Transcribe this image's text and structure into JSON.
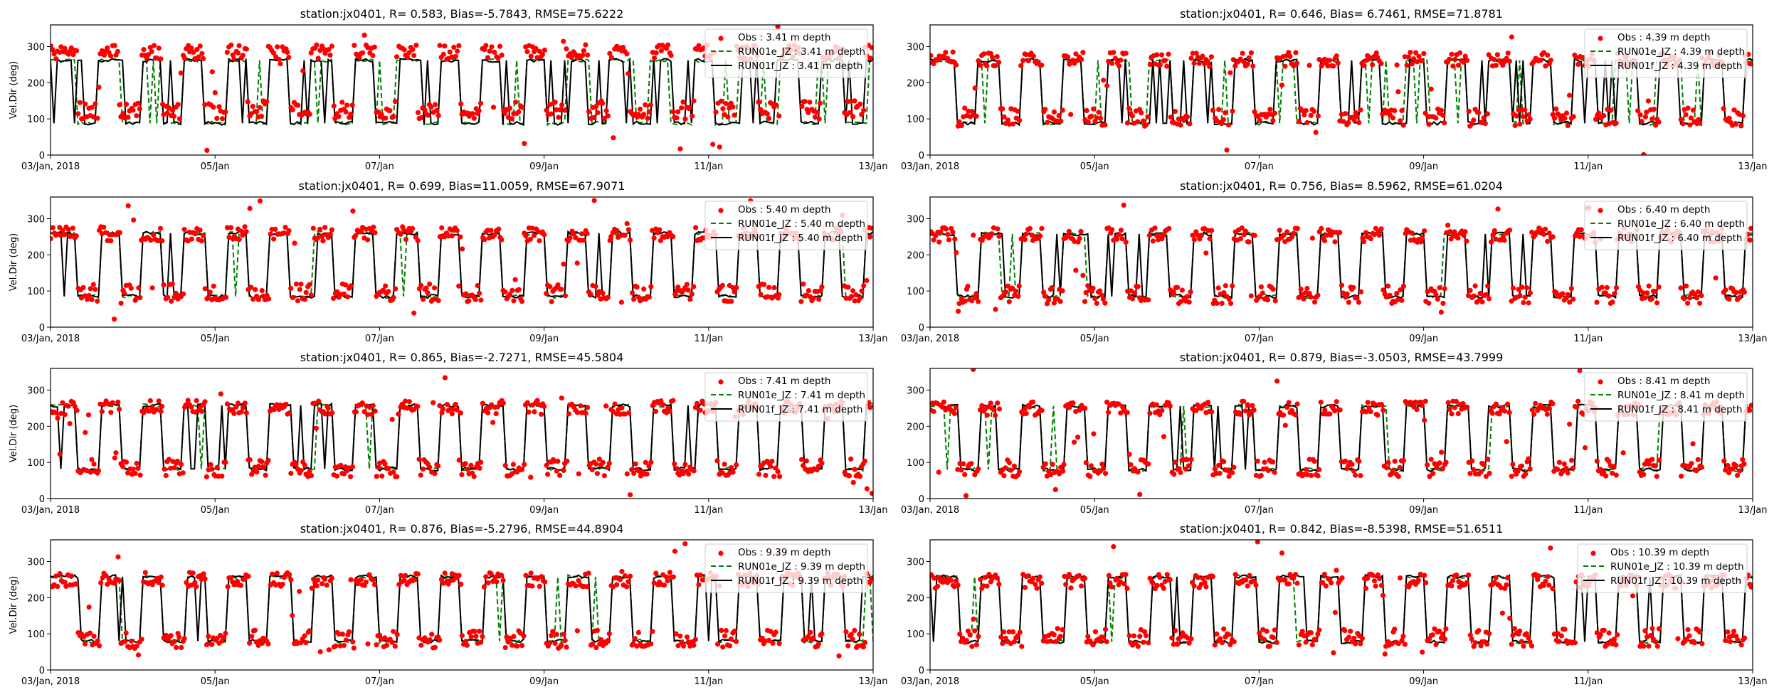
{
  "chart_data": {
    "type": "scatter",
    "figure_layout": "4 rows x 2 columns of time-series panels",
    "x_range": [
      "2018-01-03",
      "2018-01-13"
    ],
    "x_ticks": [
      "03/Jan, 2018",
      "05/Jan",
      "07/Jan",
      "09/Jan",
      "11/Jan",
      "13/Jan"
    ],
    "y_ticks": [
      "0",
      "100",
      "200",
      "300"
    ],
    "ylim": [
      0,
      360
    ],
    "ylabel": "Vel.Dir (deg)",
    "series_styles": {
      "obs": {
        "marker": "dot",
        "color": "#ff0000"
      },
      "run_e": {
        "line": "dashed",
        "color": "#008000"
      },
      "run_f": {
        "line": "solid",
        "color": "#000000"
      }
    },
    "legend_position": "top-right",
    "panels": [
      {
        "station": "jx0401",
        "R": "0.583",
        "Bias": "-5.7843",
        "RMSE": "75.6222",
        "depth": "3.41",
        "title": "station:jx0401, R= 0.583, Bias=-5.7843, RMSE=75.6222",
        "legend": [
          "Obs : 3.41 m depth",
          "RUN01e_JZ : 3.41 m depth",
          "RUN01f_JZ : 3.41 m depth"
        ],
        "obs_high": 285,
        "obs_low": 125,
        "model_high": 262,
        "model_low": 88,
        "show_ylabel": true
      },
      {
        "station": "jx0401",
        "R": "0.646",
        "Bias": "6.7461",
        "RMSE": "71.8781",
        "depth": "4.39",
        "title": "station:jx0401, R= 0.646, Bias= 6.7461, RMSE=71.8781",
        "legend": [
          "Obs : 4.39 m depth",
          "RUN01e_JZ : 4.39 m depth",
          "RUN01f_JZ : 4.39 m depth"
        ],
        "obs_high": 265,
        "obs_low": 105,
        "model_high": 262,
        "model_low": 88,
        "show_ylabel": false
      },
      {
        "station": "jx0401",
        "R": "0.699",
        "Bias": "11.0059",
        "RMSE": "67.9071",
        "depth": "5.40",
        "title": "station:jx0401, R= 0.699, Bias=11.0059, RMSE=67.9071",
        "legend": [
          "Obs : 5.40 m depth",
          "RUN01e_JZ : 5.40 m depth",
          "RUN01f_JZ : 5.40 m depth"
        ],
        "obs_high": 258,
        "obs_low": 95,
        "model_high": 260,
        "model_low": 85,
        "show_ylabel": true
      },
      {
        "station": "jx0401",
        "R": "0.756",
        "Bias": "8.5962",
        "RMSE": "61.0204",
        "depth": "6.40",
        "title": "station:jx0401, R= 0.756, Bias= 8.5962, RMSE=61.0204",
        "legend": [
          "Obs : 6.40 m depth",
          "RUN01e_JZ : 6.40 m depth",
          "RUN01f_JZ : 6.40 m depth"
        ],
        "obs_high": 255,
        "obs_low": 90,
        "model_high": 258,
        "model_low": 85,
        "show_ylabel": false
      },
      {
        "station": "jx0401",
        "R": "0.865",
        "Bias": "-2.7271",
        "RMSE": "45.5804",
        "depth": "7.41",
        "title": "station:jx0401, R= 0.865, Bias=-2.7271, RMSE=45.5804",
        "legend": [
          "Obs : 7.41 m depth",
          "RUN01e_JZ : 7.41 m depth",
          "RUN01f_JZ : 7.41 m depth"
        ],
        "obs_high": 252,
        "obs_low": 85,
        "model_high": 258,
        "model_low": 82,
        "show_ylabel": true
      },
      {
        "station": "jx0401",
        "R": "0.879",
        "Bias": "-3.0503",
        "RMSE": "43.7999",
        "depth": "8.41",
        "title": "station:jx0401, R= 0.879, Bias=-3.0503, RMSE=43.7999",
        "legend": [
          "Obs : 8.41 m depth",
          "RUN01e_JZ : 8.41 m depth",
          "RUN01f_JZ : 8.41 m depth"
        ],
        "obs_high": 250,
        "obs_low": 85,
        "model_high": 256,
        "model_low": 80,
        "show_ylabel": false
      },
      {
        "station": "jx0401",
        "R": "0.876",
        "Bias": "-5.2796",
        "RMSE": "44.8904",
        "depth": "9.39",
        "title": "station:jx0401, R= 0.876, Bias=-5.2796, RMSE=44.8904",
        "legend": [
          "Obs : 9.39 m depth",
          "RUN01e_JZ : 9.39 m depth",
          "RUN01f_JZ : 9.39 m depth"
        ],
        "obs_high": 250,
        "obs_low": 85,
        "model_high": 258,
        "model_low": 80,
        "show_ylabel": true
      },
      {
        "station": "jx0401",
        "R": "0.842",
        "Bias": "-8.5398",
        "RMSE": "51.6511",
        "depth": "10.39",
        "title": "station:jx0401, R= 0.842, Bias=-8.5398, RMSE=51.6511",
        "legend": [
          "Obs : 10.39 m depth",
          "RUN01e_JZ : 10.39 m depth",
          "RUN01f_JZ : 10.39 m depth"
        ],
        "obs_high": 245,
        "obs_low": 90,
        "model_high": 258,
        "model_low": 78,
        "show_ylabel": false
      }
    ]
  }
}
